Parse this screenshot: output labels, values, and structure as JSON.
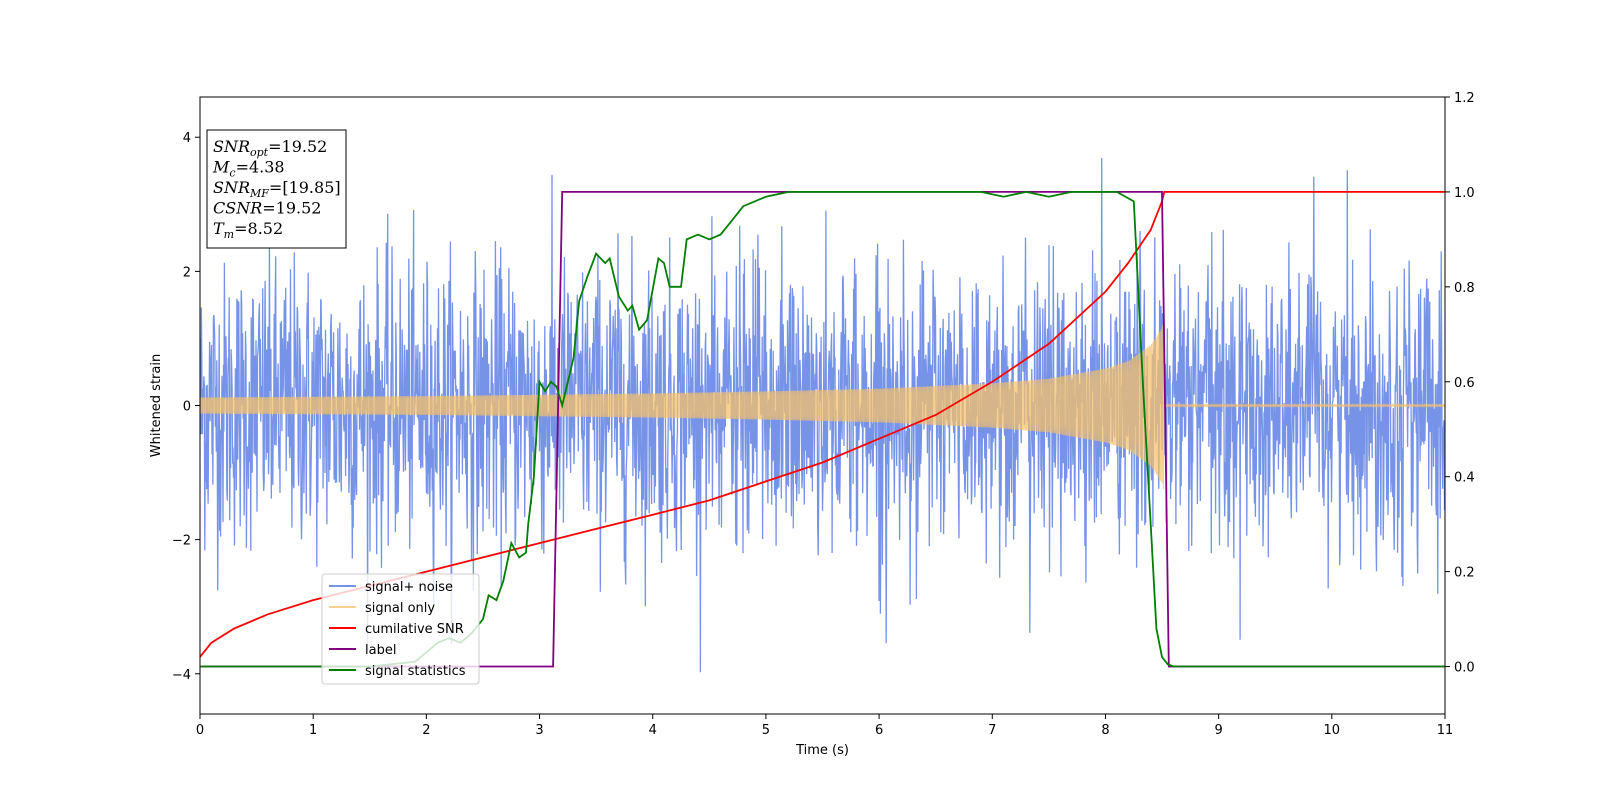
{
  "chart_data": {
    "type": "line",
    "xlabel": "Time (s)",
    "ylabel": "Whitened strain",
    "xlim": [
      0,
      11
    ],
    "ylim": [
      -4.6,
      4.6
    ],
    "y2lim": [
      -0.1,
      1.2
    ],
    "x_ticks": [
      "0",
      "1",
      "2",
      "3",
      "4",
      "5",
      "6",
      "7",
      "8",
      "9",
      "10",
      "11"
    ],
    "y_ticks": [
      "−4",
      "−2",
      "0",
      "2",
      "4"
    ],
    "y2_ticks": [
      "0.0",
      "0.2",
      "0.4",
      "0.6",
      "0.8",
      "1.0",
      "1.2"
    ],
    "grid": false,
    "legend_position": "lower-left",
    "annotation": {
      "lines": [
        {
          "base": "SNR",
          "sub": "opt",
          "value": "=19.52"
        },
        {
          "base": "M",
          "sub": "c",
          "value": "=4.38"
        },
        {
          "base": "SNR",
          "sub": "MF",
          "value": "=[19.85]"
        },
        {
          "base": "CSNR",
          "sub": "",
          "value": "=19.52"
        },
        {
          "base": "T",
          "sub": "m",
          "value": "=8.52"
        }
      ]
    },
    "series": [
      {
        "name": "signal+ noise",
        "axis": "left",
        "color": "#6a8ae6",
        "kind": "noise",
        "amplitude_range": [
          -4.1,
          4.2
        ],
        "t_end": 11
      },
      {
        "name": "signal only",
        "axis": "left",
        "color": "#f5c06a",
        "kind": "chirp_envelope",
        "envelope": {
          "x": [
            0,
            1,
            2,
            3,
            4,
            5,
            6,
            7,
            7.5,
            8,
            8.2,
            8.4,
            8.5,
            8.52
          ],
          "y": [
            0.12,
            0.13,
            0.14,
            0.16,
            0.18,
            0.21,
            0.25,
            0.33,
            0.4,
            0.55,
            0.66,
            0.9,
            1.15,
            1.3
          ]
        },
        "merger_time": 8.52
      },
      {
        "name": "cumilative SNR",
        "axis": "right",
        "color": "#ff0000",
        "x": [
          0,
          0.1,
          0.3,
          0.6,
          1.0,
          1.5,
          2.0,
          2.5,
          3.0,
          3.5,
          4.0,
          4.5,
          5.0,
          5.5,
          6.0,
          6.5,
          7.0,
          7.5,
          8.0,
          8.2,
          8.4,
          8.5,
          8.52,
          11
        ],
        "y": [
          0.02,
          0.05,
          0.08,
          0.11,
          0.14,
          0.17,
          0.2,
          0.23,
          0.26,
          0.29,
          0.32,
          0.35,
          0.39,
          0.43,
          0.48,
          0.53,
          0.6,
          0.68,
          0.79,
          0.85,
          0.92,
          0.98,
          1.0,
          1.0
        ]
      },
      {
        "name": "label",
        "axis": "right",
        "color": "#800080",
        "x": [
          0,
          3.12,
          3.2,
          8.5,
          8.56,
          11
        ],
        "y": [
          0.0,
          0.0,
          1.0,
          1.0,
          0.0,
          0.0
        ]
      },
      {
        "name": "signal statistics",
        "axis": "right",
        "color": "#007f00",
        "x": [
          0,
          0.5,
          1.0,
          1.5,
          1.9,
          2.0,
          2.1,
          2.2,
          2.3,
          2.4,
          2.5,
          2.55,
          2.62,
          2.68,
          2.75,
          2.82,
          2.88,
          2.9,
          2.95,
          3.0,
          3.05,
          3.1,
          3.15,
          3.2,
          3.3,
          3.35,
          3.42,
          3.5,
          3.58,
          3.62,
          3.7,
          3.78,
          3.82,
          3.88,
          3.95,
          4.05,
          4.1,
          4.15,
          4.25,
          4.3,
          4.4,
          4.5,
          4.6,
          4.7,
          4.8,
          5.0,
          5.2,
          5.5,
          5.8,
          6.0,
          6.3,
          6.5,
          6.7,
          6.9,
          7.1,
          7.3,
          7.5,
          7.7,
          7.9,
          8.1,
          8.25,
          8.33,
          8.4,
          8.45,
          8.5,
          8.55,
          8.6,
          9.0,
          11
        ],
        "y": [
          0.0,
          0.0,
          0.0,
          0.0,
          0.01,
          0.03,
          0.05,
          0.06,
          0.05,
          0.07,
          0.1,
          0.15,
          0.14,
          0.18,
          0.26,
          0.23,
          0.24,
          0.3,
          0.4,
          0.6,
          0.58,
          0.6,
          0.59,
          0.55,
          0.65,
          0.77,
          0.82,
          0.87,
          0.85,
          0.86,
          0.78,
          0.75,
          0.76,
          0.71,
          0.73,
          0.86,
          0.85,
          0.8,
          0.8,
          0.9,
          0.91,
          0.9,
          0.91,
          0.94,
          0.97,
          0.99,
          1.0,
          1.0,
          1.0,
          1.0,
          1.0,
          1.0,
          1.0,
          1.0,
          0.99,
          1.0,
          0.99,
          1.0,
          1.0,
          1.0,
          0.98,
          0.6,
          0.3,
          0.08,
          0.02,
          0.005,
          0.0,
          0.0,
          0.0
        ]
      }
    ]
  }
}
